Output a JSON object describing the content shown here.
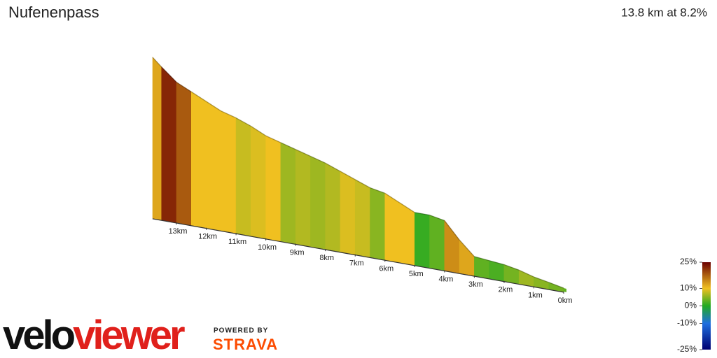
{
  "chart_data": {
    "type": "elevation-profile",
    "title": "Nufenenpass",
    "subtitle": "13.8 km at 8.2%",
    "x": [
      0,
      0.5,
      1,
      1.5,
      2,
      2.5,
      3,
      3.5,
      4,
      4.5,
      5,
      5.5,
      6,
      6.5,
      7,
      7.5,
      8,
      8.5,
      9,
      9.5,
      10,
      10.5,
      11,
      11.5,
      12,
      12.5,
      13,
      13.5,
      13.8
    ],
    "values": [
      1348,
      1370,
      1390,
      1420,
      1440,
      1450,
      1460,
      1560,
      1680,
      1700,
      1700,
      1750,
      1800,
      1820,
      1860,
      1900,
      1940,
      1970,
      2000,
      2030,
      2060,
      2110,
      2150,
      2180,
      2230,
      2280,
      2330,
      2420,
      2478
    ],
    "gradient": [
      3,
      4,
      5,
      6,
      4,
      2,
      3,
      12,
      14,
      3,
      1,
      10,
      10,
      5,
      8,
      9,
      7,
      6,
      7,
      6,
      10,
      9,
      8,
      10,
      10,
      10,
      18,
      22,
      12
    ],
    "xticks": [
      {
        "value": 13,
        "label": "13km"
      },
      {
        "value": 12,
        "label": "12km"
      },
      {
        "value": 11,
        "label": "11km"
      },
      {
        "value": 10,
        "label": "10km"
      },
      {
        "value": 9,
        "label": "9km"
      },
      {
        "value": 8,
        "label": "8km"
      },
      {
        "value": 7,
        "label": "7km"
      },
      {
        "value": 6,
        "label": "6km"
      },
      {
        "value": 5,
        "label": "5km"
      },
      {
        "value": 4,
        "label": "4km"
      },
      {
        "value": 3,
        "label": "3km"
      },
      {
        "value": 2,
        "label": "2km"
      },
      {
        "value": 1,
        "label": "1km"
      },
      {
        "value": 0,
        "label": "0km"
      }
    ],
    "color_scale": {
      "ticks": [
        {
          "value": 25,
          "label": "25%"
        },
        {
          "value": 10,
          "label": "10%"
        },
        {
          "value": 0,
          "label": "0%"
        },
        {
          "value": -10,
          "label": "-10%"
        },
        {
          "value": -25,
          "label": "-25%"
        }
      ],
      "colors": [
        "#6b0000",
        "#f0c020",
        "#22aa22",
        "#1e6fe0",
        "#000070"
      ]
    }
  },
  "branding": {
    "velo": "velo",
    "viewer": "viewer",
    "powered_by": "POWERED BY",
    "strava": "STRAVA"
  }
}
